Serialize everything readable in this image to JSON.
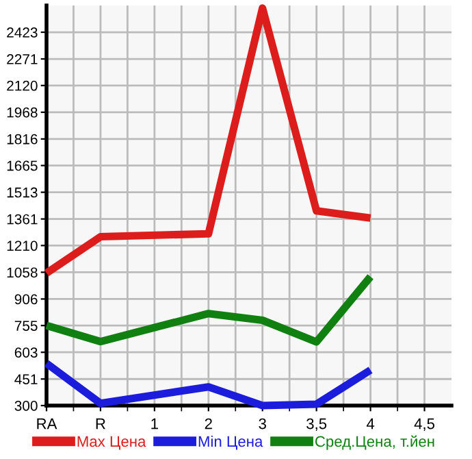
{
  "chart_data": {
    "type": "line",
    "categories": [
      "RA",
      "R",
      "1",
      "2",
      "3",
      "3,5",
      "4",
      "4,5"
    ],
    "series": [
      {
        "name": "Max Цена",
        "color": "#dd1c1c",
        "values": [
          1053,
          1260,
          null,
          1277,
          2560,
          1407,
          1366,
          null
        ]
      },
      {
        "name": "Min Цена",
        "color": "#1c1cdd",
        "values": [
          540,
          313,
          null,
          406,
          300,
          308,
          502,
          null
        ]
      },
      {
        "name": "Сред.Цена, т.йен",
        "color": "#108010",
        "values": [
          755,
          664,
          null,
          823,
          785,
          662,
          1033,
          null
        ]
      }
    ],
    "ylim": [
      300,
      2575
    ],
    "yticks": [
      300,
      451,
      603,
      755,
      906,
      1058,
      1210,
      1361,
      1513,
      1665,
      1816,
      1968,
      2120,
      2271,
      2423
    ],
    "grid": true,
    "legend": "bottom",
    "marker": "none",
    "line_style": "solid"
  }
}
